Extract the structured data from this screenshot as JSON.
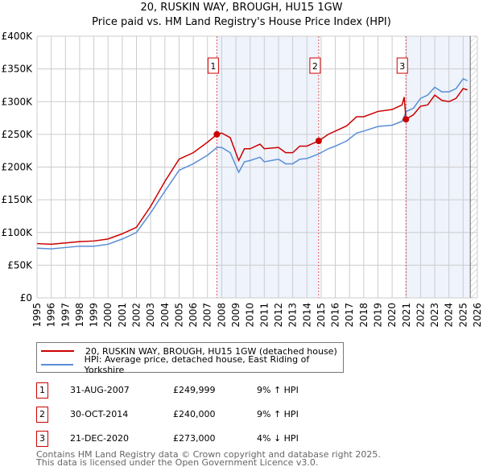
{
  "title": "20, RUSKIN WAY, BROUGH, HU15 1GW",
  "subtitle": "Price paid vs. HM Land Registry's House Price Index (HPI)",
  "colors": {
    "property": "#cc0000",
    "hpi": "#5b8ed6",
    "shade": "#eef3fc",
    "grid": "#cccccc"
  },
  "chart_data": {
    "type": "line",
    "title": "Price paid vs. HM Land Registry's House Price Index (HPI)",
    "xlim": [
      1995,
      2026
    ],
    "ylim": [
      0,
      400000
    ],
    "yticks": [
      {
        "v": 0,
        "label": "£0"
      },
      {
        "v": 50000,
        "label": "£50K"
      },
      {
        "v": 100000,
        "label": "£100K"
      },
      {
        "v": 150000,
        "label": "£150K"
      },
      {
        "v": 200000,
        "label": "£200K"
      },
      {
        "v": 250000,
        "label": "£250K"
      },
      {
        "v": 300000,
        "label": "£300K"
      },
      {
        "v": 350000,
        "label": "£350K"
      },
      {
        "v": 400000,
        "label": "£400K"
      }
    ],
    "xticks": [
      "1995",
      "1996",
      "1997",
      "1998",
      "1999",
      "2000",
      "2001",
      "2002",
      "2003",
      "2004",
      "2005",
      "2006",
      "2007",
      "2008",
      "2009",
      "2010",
      "2011",
      "2012",
      "2013",
      "2014",
      "2015",
      "2016",
      "2017",
      "2018",
      "2019",
      "2020",
      "2021",
      "2022",
      "2023",
      "2024",
      "2025",
      "2026"
    ],
    "series": [
      {
        "name": "20, RUSKIN WAY, BROUGH, HU15 1GW (detached house)",
        "color": "#cc0000",
        "x": [
          1995,
          1996,
          1997,
          1998,
          1999,
          2000,
          2001,
          2002,
          2003,
          2004,
          2005,
          2006,
          2007,
          2007.67,
          2008,
          2008.6,
          2009.2,
          2009.6,
          2010,
          2010.7,
          2011,
          2012,
          2012.5,
          2013,
          2013.5,
          2014,
          2014.83,
          2015.5,
          2016,
          2016.8,
          2017.5,
          2018,
          2019,
          2020,
          2020.7,
          2020.85,
          2020.97,
          2021.5,
          2022,
          2022.5,
          2023,
          2023.5,
          2024,
          2024.5,
          2025,
          2025.3
        ],
        "y": [
          83000,
          82000,
          84000,
          86000,
          87000,
          90000,
          98000,
          108000,
          140000,
          178000,
          212000,
          222000,
          238000,
          249999,
          252000,
          245000,
          210000,
          228000,
          228000,
          235000,
          228000,
          230000,
          222000,
          222000,
          232000,
          232000,
          240000,
          250000,
          255000,
          263000,
          277000,
          277000,
          285000,
          288000,
          295000,
          307000,
          273000,
          280000,
          293000,
          295000,
          310000,
          302000,
          300000,
          305000,
          320000,
          318000
        ]
      },
      {
        "name": "HPI: Average price, detached house, East Riding of Yorkshire",
        "color": "#5b8ed6",
        "x": [
          1995,
          1996,
          1997,
          1998,
          1999,
          2000,
          2001,
          2002,
          2003,
          2004,
          2005,
          2006,
          2007,
          2007.67,
          2008,
          2008.6,
          2009.2,
          2009.6,
          2010,
          2010.7,
          2011,
          2012,
          2012.5,
          2013,
          2013.5,
          2014,
          2014.83,
          2015.5,
          2016,
          2016.8,
          2017.5,
          2018,
          2019,
          2020,
          2020.7,
          2021,
          2021.5,
          2022,
          2022.5,
          2023,
          2023.5,
          2024,
          2024.5,
          2025,
          2025.3
        ],
        "y": [
          76000,
          75000,
          77000,
          79000,
          79000,
          82000,
          90000,
          100000,
          130000,
          163000,
          195000,
          205000,
          218000,
          230000,
          230000,
          222000,
          192000,
          208000,
          210000,
          215000,
          208000,
          212000,
          205000,
          205000,
          212000,
          213000,
          220000,
          228000,
          232000,
          240000,
          252000,
          255000,
          262000,
          264000,
          270000,
          285000,
          290000,
          305000,
          310000,
          322000,
          315000,
          315000,
          320000,
          335000,
          332000
        ]
      }
    ],
    "sales": [
      {
        "label": "1",
        "x": 2007.66,
        "y": 249999
      },
      {
        "label": "2",
        "x": 2014.83,
        "y": 240000
      },
      {
        "label": "3",
        "x": 2020.97,
        "y": 273000
      }
    ],
    "shaded": [
      [
        2007.66,
        2014.83
      ],
      [
        2020.97,
        2025.5
      ]
    ],
    "hatched": [
      2025.5,
      2026
    ]
  },
  "legend": [
    {
      "label": "20, RUSKIN WAY, BROUGH, HU15 1GW (detached house)",
      "color": "#cc0000"
    },
    {
      "label": "HPI: Average price, detached house, East Riding of Yorkshire",
      "color": "#5b8ed6"
    }
  ],
  "transactions": [
    {
      "num": "1",
      "date": "31-AUG-2007",
      "price": "£249,999",
      "hpi": "9% ↑ HPI"
    },
    {
      "num": "2",
      "date": "30-OCT-2014",
      "price": "£240,000",
      "hpi": "9% ↑ HPI"
    },
    {
      "num": "3",
      "date": "21-DEC-2020",
      "price": "£273,000",
      "hpi": "4% ↓ HPI"
    }
  ],
  "footer": {
    "line1": "Contains HM Land Registry data © Crown copyright and database right 2025.",
    "line2": "This data is licensed under the Open Government Licence v3.0."
  }
}
